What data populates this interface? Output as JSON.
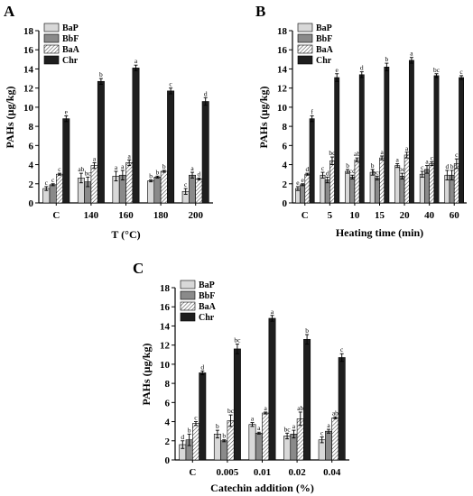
{
  "legend_keys": [
    "BaP",
    "BbF",
    "BaA",
    "Chr"
  ],
  "series_colors": {
    "BaP": "#d8d8d8",
    "BbF": "#8a8a8a",
    "BaA": "hatch",
    "Chr": "#1e1e1e"
  },
  "chart_data": [
    {
      "panel": "A",
      "type": "bar",
      "categories": [
        "C",
        "140",
        "160",
        "180",
        "200"
      ],
      "xlabel": "T (°C)",
      "ylabel": "PAHs (μg/kg)",
      "ylim": [
        0,
        18
      ],
      "yticks": [
        0,
        2,
        4,
        6,
        8,
        10,
        12,
        14,
        16,
        18
      ],
      "legend_placement": "top-left",
      "series": [
        {
          "name": "BaP",
          "values": [
            1.5,
            2.6,
            2.8,
            2.3,
            1.2
          ],
          "errors": [
            0.2,
            0.5,
            0.5,
            0.1,
            0.3
          ],
          "labels": [
            "c",
            "ab",
            "a",
            "b",
            "c"
          ]
        },
        {
          "name": "BbF",
          "values": [
            1.9,
            2.2,
            2.9,
            2.7,
            2.9
          ],
          "errors": [
            0.1,
            0.5,
            0.5,
            0.1,
            0.3
          ],
          "labels": [
            "c",
            "bc",
            "a",
            "b",
            "a"
          ]
        },
        {
          "name": "BaA",
          "values": [
            3.0,
            3.9,
            4.2,
            3.3,
            2.5
          ],
          "errors": [
            0.1,
            0.3,
            0.3,
            0.1,
            0.1
          ],
          "labels": [
            "c",
            "a",
            "a",
            "b",
            "d"
          ]
        },
        {
          "name": "Chr",
          "values": [
            8.8,
            12.7,
            14.1,
            11.7,
            10.6
          ],
          "errors": [
            0.3,
            0.3,
            0.3,
            0.3,
            0.4
          ],
          "labels": [
            "e",
            "b",
            "a",
            "c",
            "d"
          ]
        }
      ]
    },
    {
      "panel": "B",
      "type": "bar",
      "categories": [
        "C",
        "5",
        "10",
        "15",
        "20",
        "40",
        "60"
      ],
      "xlabel": "Heating time (min)",
      "ylabel": "PAHs (μg/kg)",
      "ylim": [
        0,
        18
      ],
      "yticks": [
        0,
        2,
        4,
        6,
        8,
        10,
        12,
        14,
        16,
        18
      ],
      "legend_placement": "top-left",
      "series": [
        {
          "name": "BaP",
          "values": [
            1.5,
            2.9,
            3.3,
            3.2,
            3.9,
            3.0,
            2.9
          ],
          "errors": [
            0.2,
            0.3,
            0.2,
            0.3,
            0.2,
            0.3,
            0.5
          ],
          "labels": [
            "e",
            "c",
            "b",
            "b",
            "a",
            "c",
            "d"
          ]
        },
        {
          "name": "BbF",
          "values": [
            1.9,
            2.4,
            2.7,
            2.6,
            2.8,
            3.5,
            2.9
          ],
          "errors": [
            0.1,
            0.3,
            0.2,
            0.2,
            0.3,
            0.4,
            0.5
          ],
          "labels": [
            "e",
            "d",
            "cd",
            "bcd",
            "bc",
            "a",
            "b"
          ]
        },
        {
          "name": "BaA",
          "values": [
            3.0,
            4.4,
            4.5,
            4.7,
            5.0,
            4.1,
            4.1
          ],
          "errors": [
            0.1,
            0.4,
            0.2,
            0.2,
            0.3,
            0.2,
            0.5
          ],
          "labels": [
            "d",
            "bc",
            "ab",
            "a",
            "a",
            "c",
            "c"
          ]
        },
        {
          "name": "Chr",
          "values": [
            8.8,
            13.1,
            13.4,
            14.2,
            14.9,
            13.3,
            13.1
          ],
          "errors": [
            0.3,
            0.4,
            0.3,
            0.4,
            0.3,
            0.2,
            0.2
          ],
          "labels": [
            "f",
            "e",
            "d",
            "b",
            "a",
            "bc",
            "c"
          ]
        }
      ]
    },
    {
      "panel": "C",
      "type": "bar",
      "categories": [
        "C",
        "0.005",
        "0.01",
        "0.02",
        "0.04"
      ],
      "xlabel": "Catechin addition (%)",
      "ylabel": "PAHs (μg/kg)",
      "ylim": [
        0,
        18
      ],
      "yticks": [
        0,
        2,
        4,
        6,
        8,
        10,
        12,
        14,
        16,
        18
      ],
      "legend_placement": "top-left",
      "series": [
        {
          "name": "BaP",
          "values": [
            1.6,
            2.7,
            3.7,
            2.5,
            2.1
          ],
          "errors": [
            0.4,
            0.4,
            0.2,
            0.3,
            0.3
          ],
          "labels": [
            "d",
            "b",
            "a",
            "bc",
            "c"
          ]
        },
        {
          "name": "BbF",
          "values": [
            2.1,
            2.0,
            2.8,
            2.7,
            3.0
          ],
          "errors": [
            0.6,
            0.1,
            0.1,
            0.4,
            0.2
          ],
          "labels": [
            "b",
            "b",
            "a",
            "a",
            "a"
          ]
        },
        {
          "name": "BaA",
          "values": [
            3.8,
            4.1,
            4.9,
            4.3,
            4.4
          ],
          "errors": [
            0.2,
            0.6,
            0.1,
            0.7,
            0.1
          ],
          "labels": [
            "c",
            "bc",
            "a",
            "ab",
            "ab"
          ]
        },
        {
          "name": "Chr",
          "values": [
            9.1,
            11.6,
            14.8,
            12.6,
            10.7
          ],
          "errors": [
            0.2,
            0.5,
            0.3,
            0.5,
            0.4
          ],
          "labels": [
            "d",
            "bc",
            "a",
            "b",
            "c"
          ]
        }
      ]
    }
  ]
}
